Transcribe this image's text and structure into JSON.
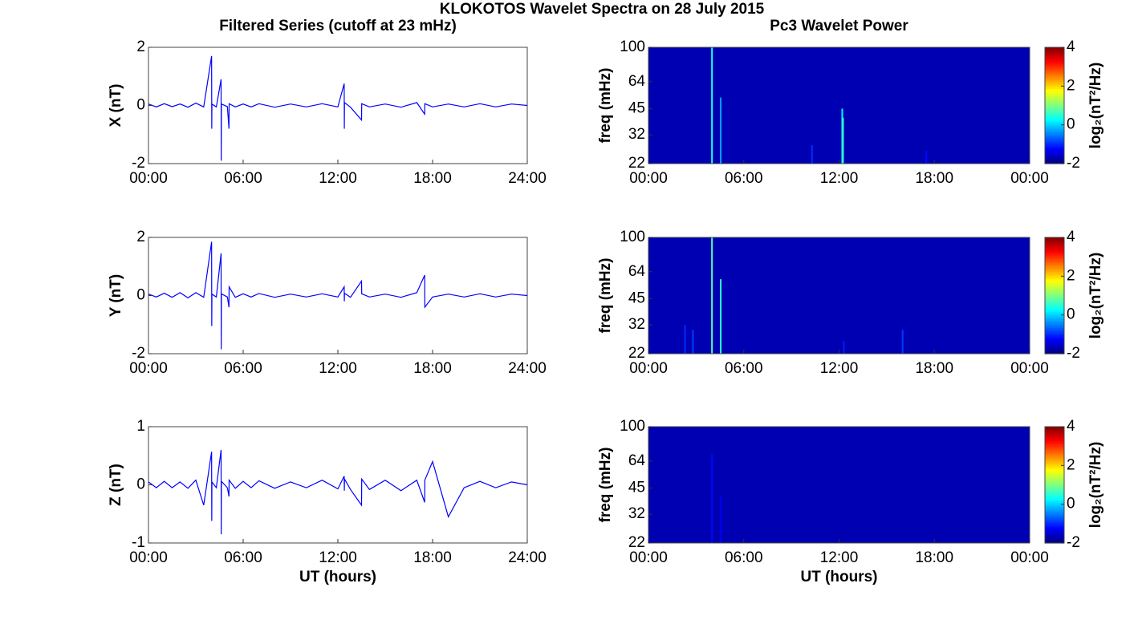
{
  "title": "KLOKOTOS Wavelet Spectra on 28 July 2015",
  "chart_data": [
    {
      "type": "line",
      "title": "Filtered Series (cutoff at 23 mHz)",
      "ylabel": "X (nT)",
      "color": "#0000ff",
      "xlim": [
        0,
        24
      ],
      "xticks": [
        {
          "value": 0,
          "label": "00:00"
        },
        {
          "value": 6,
          "label": "06:00"
        },
        {
          "value": 12,
          "label": "12:00"
        },
        {
          "value": 18,
          "label": "18:00"
        },
        {
          "value": 24,
          "label": "24:00"
        }
      ],
      "ylim": [
        -2,
        2
      ],
      "yticks": [
        -2,
        0,
        2
      ],
      "x": [
        0,
        0.5,
        1,
        1.5,
        2,
        2.5,
        3,
        3.5,
        4.0,
        4.01,
        4.02,
        4.3,
        4.6,
        4.61,
        4.62,
        5.0,
        5.1,
        5.11,
        5.5,
        6,
        6.5,
        7,
        8,
        9,
        10,
        11,
        12,
        12.4,
        12.41,
        12.42,
        12.8,
        13.5,
        13.51,
        14,
        15,
        16,
        17,
        17.5,
        17.51,
        18,
        19,
        20,
        21,
        22,
        23,
        24
      ],
      "values": [
        0.05,
        -0.05,
        0.06,
        -0.04,
        0.05,
        -0.06,
        0.08,
        -0.05,
        1.7,
        -0.8,
        0.05,
        -0.05,
        0.9,
        -1.9,
        0.05,
        -0.04,
        -0.8,
        0.06,
        -0.05,
        0.05,
        -0.05,
        0.06,
        -0.06,
        0.05,
        -0.05,
        0.06,
        -0.05,
        0.75,
        -0.8,
        0.1,
        -0.06,
        -0.5,
        0.06,
        -0.05,
        0.05,
        -0.06,
        0.1,
        -0.3,
        0.06,
        -0.05,
        0.05,
        -0.05,
        0.06,
        -0.05,
        0.05,
        0.0
      ]
    },
    {
      "type": "line",
      "ylabel": "Y (nT)",
      "color": "#0000ff",
      "xlim": [
        0,
        24
      ],
      "xticks": [
        {
          "value": 0,
          "label": "00:00"
        },
        {
          "value": 6,
          "label": "06:00"
        },
        {
          "value": 12,
          "label": "12:00"
        },
        {
          "value": 18,
          "label": "18:00"
        },
        {
          "value": 24,
          "label": "24:00"
        }
      ],
      "ylim": [
        -2,
        2
      ],
      "yticks": [
        -2,
        0,
        2
      ],
      "x": [
        0,
        0.5,
        1,
        1.5,
        2,
        2.5,
        3,
        3.5,
        4.0,
        4.01,
        4.02,
        4.3,
        4.6,
        4.61,
        4.62,
        5.0,
        5.1,
        5.11,
        5.5,
        6,
        6.5,
        7,
        8,
        9,
        10,
        11,
        12,
        12.4,
        12.41,
        12.42,
        12.8,
        13.5,
        13.51,
        14,
        15,
        16,
        17,
        17.5,
        17.51,
        18,
        19,
        20,
        21,
        22,
        23,
        24
      ],
      "values": [
        0.05,
        -0.05,
        0.08,
        -0.06,
        0.1,
        -0.08,
        0.1,
        -0.06,
        1.85,
        -1.05,
        0.05,
        -0.05,
        1.45,
        -1.85,
        0.06,
        -0.05,
        -0.4,
        0.3,
        -0.06,
        0.06,
        -0.05,
        0.07,
        -0.06,
        0.05,
        -0.05,
        0.06,
        -0.05,
        0.3,
        -0.2,
        0.08,
        -0.06,
        0.5,
        0.06,
        -0.05,
        0.05,
        -0.06,
        0.1,
        0.7,
        -0.4,
        -0.05,
        0.05,
        -0.05,
        0.06,
        -0.05,
        0.05,
        0.0
      ]
    },
    {
      "type": "line",
      "ylabel": "Z (nT)",
      "xlabel": "UT (hours)",
      "color": "#0000ff",
      "xlim": [
        0,
        24
      ],
      "xticks": [
        {
          "value": 0,
          "label": "00:00"
        },
        {
          "value": 6,
          "label": "06:00"
        },
        {
          "value": 12,
          "label": "12:00"
        },
        {
          "value": 18,
          "label": "18:00"
        },
        {
          "value": 24,
          "label": "24:00"
        }
      ],
      "ylim": [
        -1,
        1
      ],
      "yticks": [
        -1,
        0,
        1
      ],
      "x": [
        0,
        0.5,
        1,
        1.5,
        2,
        2.5,
        3,
        3.5,
        4.0,
        4.01,
        4.02,
        4.3,
        4.6,
        4.61,
        4.62,
        5.0,
        5.1,
        5.11,
        5.5,
        6,
        6.5,
        7,
        8,
        9,
        10,
        11,
        12,
        12.4,
        12.41,
        12.42,
        12.8,
        13.5,
        13.51,
        14,
        15,
        16,
        17,
        17.5,
        17.51,
        18,
        19,
        20,
        21,
        22,
        23,
        24
      ],
      "values": [
        0.05,
        -0.05,
        0.06,
        -0.05,
        0.05,
        -0.06,
        0.08,
        -0.35,
        0.57,
        -0.62,
        0.05,
        -0.05,
        0.6,
        -0.85,
        0.06,
        -0.05,
        -0.2,
        0.08,
        -0.06,
        0.06,
        -0.05,
        0.07,
        -0.06,
        0.05,
        -0.05,
        0.08,
        -0.07,
        0.15,
        -0.1,
        0.1,
        -0.08,
        -0.35,
        0.1,
        -0.08,
        0.08,
        -0.1,
        0.08,
        -0.3,
        0.08,
        0.4,
        -0.55,
        -0.05,
        0.06,
        -0.05,
        0.05,
        0.0
      ]
    },
    {
      "type": "heatmap",
      "title": "Pc3 Wavelet Power",
      "ylabel": "freq (mHz)",
      "colormap": "jet",
      "log_y": true,
      "xlim": [
        0,
        24
      ],
      "xticks": [
        {
          "value": 0,
          "label": "00:00"
        },
        {
          "value": 6,
          "label": "06:00"
        },
        {
          "value": 12,
          "label": "12:00"
        },
        {
          "value": 18,
          "label": "18:00"
        },
        {
          "value": 24,
          "label": "00:00"
        }
      ],
      "ylim": [
        22,
        100
      ],
      "yticks": [
        22,
        32,
        45,
        64,
        100
      ],
      "clim": [
        -2,
        4
      ],
      "cticks": [
        -2,
        0,
        2,
        4
      ],
      "colorbar_label": "log₂(nT²/Hz)",
      "base_value": -1.7,
      "streaks": {
        "x": [
          4.0,
          4.55,
          10.3,
          12.2,
          12.25,
          17.5
        ],
        "y_top": [
          100,
          52,
          28,
          45,
          40,
          26
        ],
        "values": [
          0.5,
          -0.3,
          -1.0,
          0.2,
          0.6,
          -1.2
        ]
      }
    },
    {
      "type": "heatmap",
      "ylabel": "freq (mHz)",
      "colormap": "jet",
      "log_y": true,
      "xlim": [
        0,
        24
      ],
      "xticks": [
        {
          "value": 0,
          "label": "00:00"
        },
        {
          "value": 6,
          "label": "06:00"
        },
        {
          "value": 12,
          "label": "12:00"
        },
        {
          "value": 18,
          "label": "18:00"
        },
        {
          "value": 24,
          "label": "00:00"
        }
      ],
      "ylim": [
        22,
        100
      ],
      "yticks": [
        22,
        32,
        45,
        64,
        100
      ],
      "clim": [
        -2,
        4
      ],
      "cticks": [
        -2,
        0,
        2,
        4
      ],
      "colorbar_label": "log₂(nT²/Hz)",
      "base_value": -1.7,
      "streaks": {
        "x": [
          2.3,
          2.8,
          4.0,
          4.55,
          12.3,
          16.0
        ],
        "y_top": [
          32,
          30,
          100,
          58,
          26,
          30
        ],
        "values": [
          -1.0,
          -0.9,
          0.8,
          0.5,
          -1.1,
          -0.9
        ]
      }
    },
    {
      "type": "heatmap",
      "ylabel": "freq (mHz)",
      "xlabel": "UT (hours)",
      "colormap": "jet",
      "log_y": true,
      "xlim": [
        0,
        24
      ],
      "xticks": [
        {
          "value": 0,
          "label": "00:00"
        },
        {
          "value": 6,
          "label": "06:00"
        },
        {
          "value": 12,
          "label": "12:00"
        },
        {
          "value": 18,
          "label": "18:00"
        },
        {
          "value": 24,
          "label": "00:00"
        }
      ],
      "ylim": [
        22,
        100
      ],
      "yticks": [
        22,
        32,
        45,
        64,
        100
      ],
      "clim": [
        -2,
        4
      ],
      "cticks": [
        -2,
        0,
        2,
        4
      ],
      "colorbar_label": "log₂(nT²/Hz)",
      "base_value": -1.7,
      "streaks": {
        "x": [
          4.0,
          4.55
        ],
        "y_top": [
          70,
          40
        ],
        "values": [
          -1.2,
          -1.3
        ]
      }
    }
  ]
}
